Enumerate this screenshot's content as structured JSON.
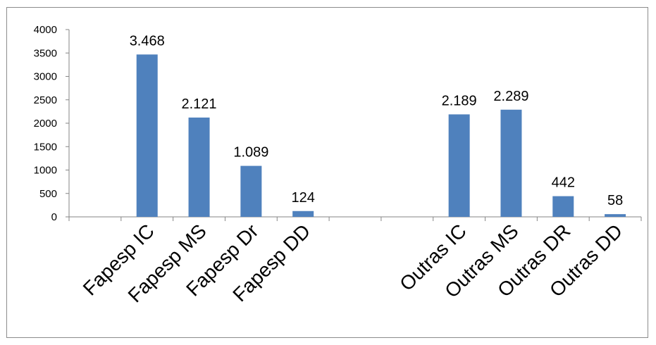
{
  "chart_data": {
    "type": "bar",
    "categories": [
      "",
      "Fapesp IC",
      "Fapesp MS",
      "Fapesp Dr",
      "Fapesp DD",
      "",
      "",
      "Outras IC",
      "Outras MS",
      "Outras DR",
      "Outras DD"
    ],
    "values": [
      null,
      3468,
      2121,
      1089,
      124,
      null,
      null,
      2189,
      2289,
      442,
      58
    ],
    "data_labels": [
      "",
      "3.468",
      "2.121",
      "1.089",
      "124",
      "",
      "",
      "2.189",
      "2.289",
      "442",
      "58"
    ],
    "ylim": [
      0,
      4000
    ],
    "yticks": [
      "0",
      "500",
      "1000",
      "1500",
      "2000",
      "2500",
      "3000",
      "3500",
      "4000"
    ],
    "ytick_values": [
      0,
      500,
      1000,
      1500,
      2000,
      2500,
      3000,
      3500,
      4000
    ],
    "title": "",
    "xlabel": "",
    "ylabel": "",
    "grid": false,
    "legend": "none",
    "bar_color": "#4f81bd"
  }
}
